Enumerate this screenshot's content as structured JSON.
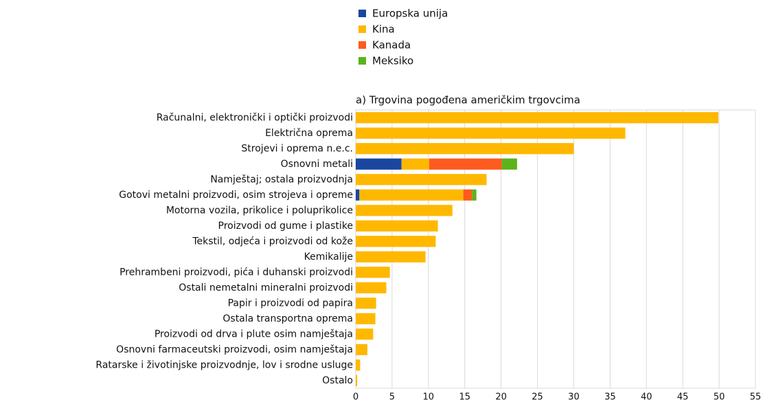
{
  "chart_data": {
    "type": "bar",
    "orientation": "horizontal",
    "stacked": true,
    "title": "a) Trgovina pogođena američkim trgovcima",
    "categories": [
      "Računalni, elektronički i optički proizvodi",
      "Električna oprema",
      "Strojevi i oprema n.e.c.",
      "Osnovni metali",
      "Namještaj; ostala proizvodnja",
      "Gotovi metalni proizvodi, osim strojeva i opreme",
      "Motorna vozila, prikolice i poluprikolice",
      "Proizvodi od gume i plastike",
      "Tekstil, odjeća i proizvodi od kože",
      "Kemikalije",
      "Prehrambeni proizvodi, pića i duhanski proizvodi",
      "Ostali nemetalni mineralni proizvodi",
      "Papir i proizvodi od papira",
      "Ostala transportna oprema",
      "Proizvodi od drva i plute osim namještaja",
      "Osnovni farmaceutski proizvodi, osim namještaja",
      "Ratarske i životinjske proizvodnje, lov i srodne usluge",
      "Ostalo"
    ],
    "series": [
      {
        "name": "Europska unija",
        "color": "#1a46a0",
        "values": [
          0,
          0,
          0,
          6.3,
          0,
          0.5,
          0,
          0,
          0,
          0,
          0,
          0,
          0,
          0,
          0,
          0,
          0,
          0
        ]
      },
      {
        "name": "Kina",
        "color": "#ffb800",
        "values": [
          49.9,
          37.1,
          30,
          3.8,
          18,
          14.3,
          13.3,
          11.3,
          11,
          9.6,
          4.7,
          4.2,
          2.8,
          2.7,
          2.4,
          1.6,
          0.6,
          0.2
        ]
      },
      {
        "name": "Kanada",
        "color": "#ff5a1f",
        "values": [
          0,
          0,
          0,
          10,
          0,
          1.2,
          0,
          0,
          0,
          0,
          0,
          0,
          0,
          0,
          0,
          0,
          0,
          0
        ]
      },
      {
        "name": "Meksiko",
        "color": "#5bb319",
        "values": [
          0,
          0,
          0,
          2.1,
          0,
          0.6,
          0,
          0,
          0,
          0,
          0,
          0,
          0,
          0,
          0,
          0,
          0,
          0
        ]
      }
    ],
    "xlim": [
      0,
      55
    ],
    "xticks": [
      0,
      5,
      10,
      15,
      20,
      25,
      30,
      35,
      40,
      45,
      50,
      55
    ],
    "grid": true,
    "legend": "top"
  }
}
